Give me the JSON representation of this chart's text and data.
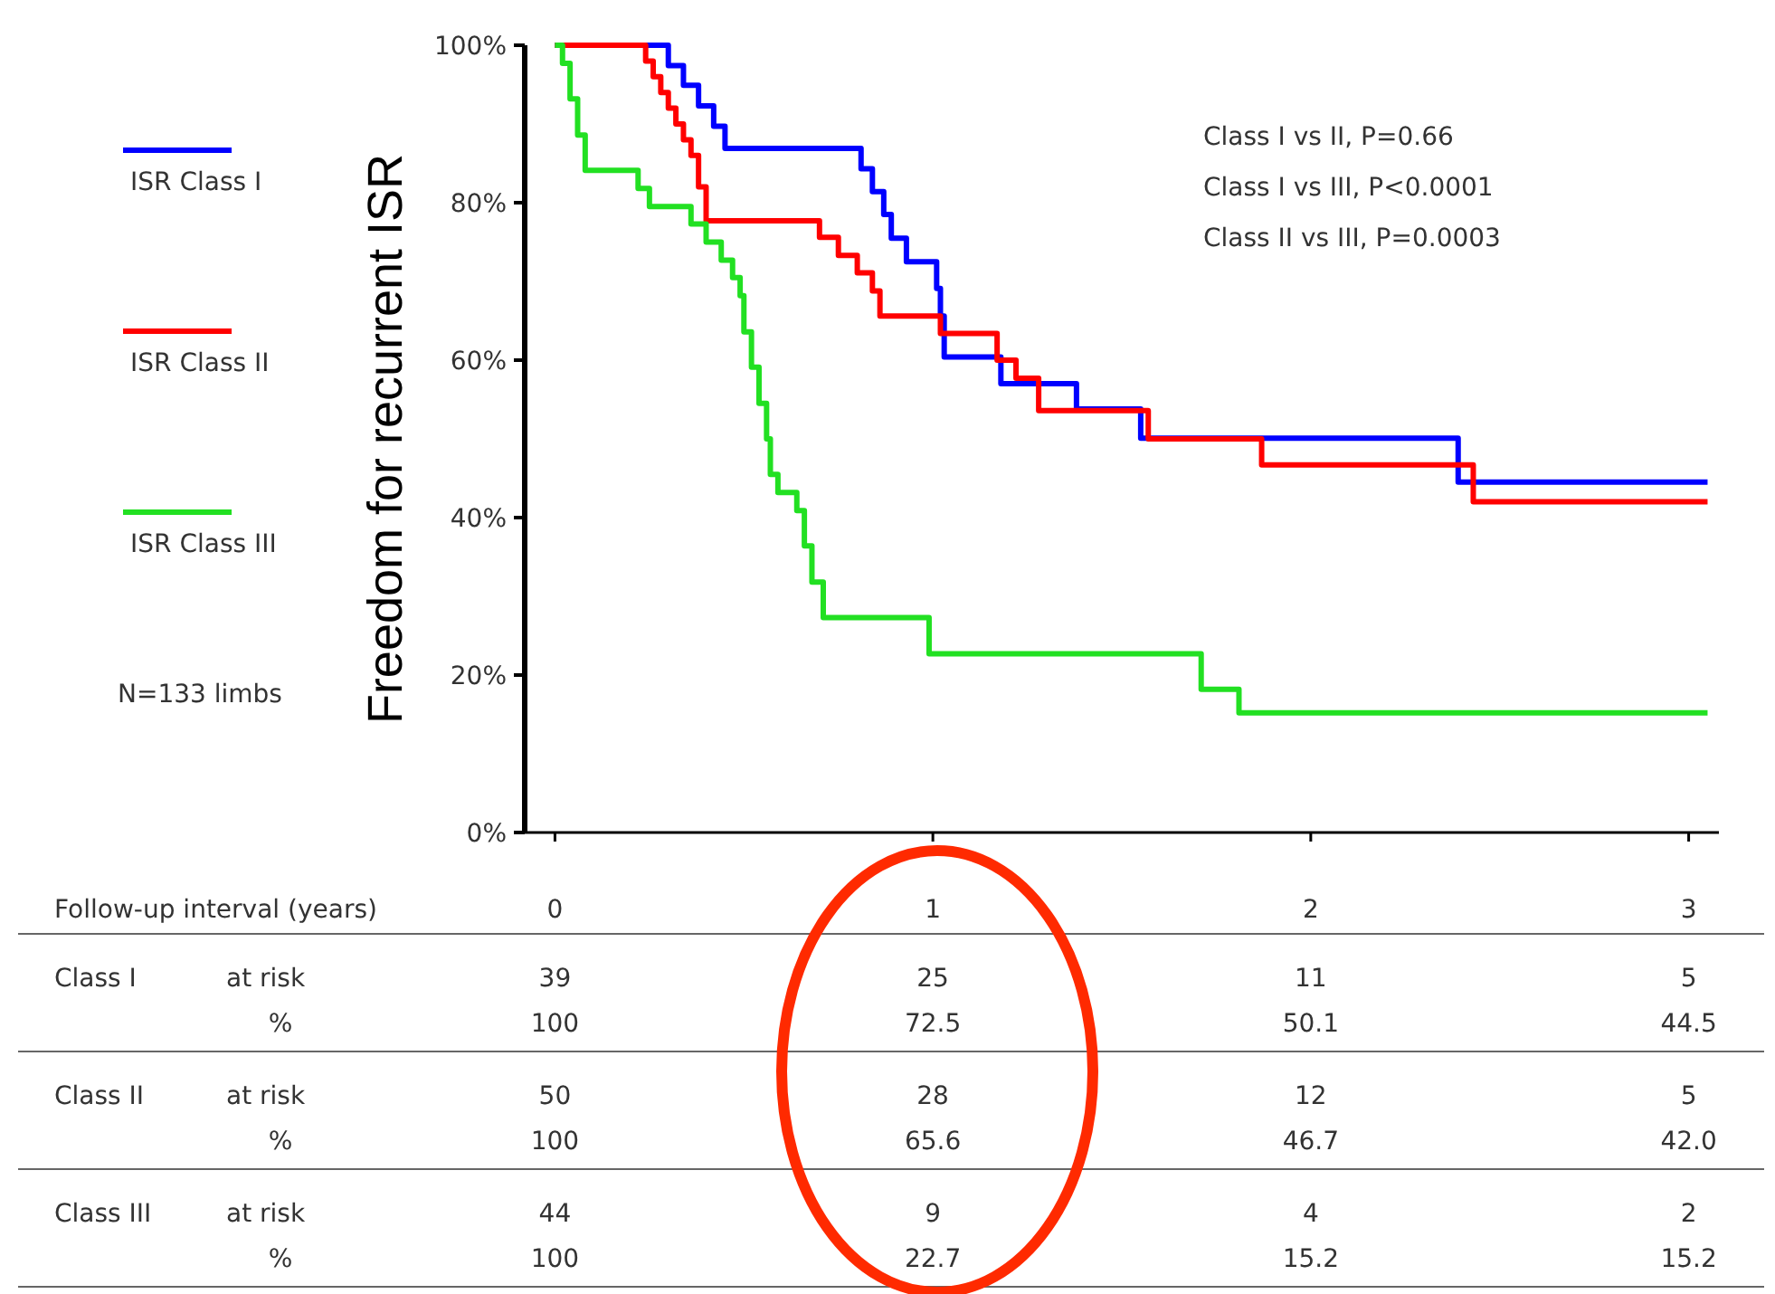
{
  "chart_data": {
    "type": "step",
    "ylabel": "Freedom for recurrent ISR",
    "xlabel": "Follow-up interval (years)",
    "legend": "left",
    "xlim": [
      -0.08,
      3.08
    ],
    "xticks": [
      0,
      1,
      2,
      3
    ],
    "ylim": [
      0,
      100
    ],
    "yticks": [
      {
        "value": 0,
        "label": "0%"
      },
      {
        "value": 20,
        "label": "20%"
      },
      {
        "value": 40,
        "label": "40%"
      },
      {
        "value": 60,
        "label": "60%"
      },
      {
        "value": 80,
        "label": "80%"
      },
      {
        "value": 100,
        "label": "100%"
      }
    ],
    "series": [
      {
        "name": "ISR Class I",
        "color": "#0000ff",
        "x": [
          0,
          0.3,
          0.34,
          0.38,
          0.42,
          0.45,
          0.81,
          0.84,
          0.87,
          0.89,
          0.93,
          1.01,
          1.02,
          1.03,
          1.18,
          1.38,
          1.55,
          2.39,
          3.05
        ],
        "values": [
          100,
          97.4,
          94.9,
          92.3,
          89.7,
          86.9,
          84.3,
          81.4,
          78.5,
          75.5,
          72.5,
          69.1,
          65.6,
          60.4,
          57,
          53.8,
          50.1,
          44.5,
          44.5
        ]
      },
      {
        "name": "ISR Class II",
        "color": "#ff0000",
        "x": [
          0,
          0.24,
          0.26,
          0.28,
          0.3,
          0.32,
          0.34,
          0.36,
          0.38,
          0.4,
          0.7,
          0.75,
          0.8,
          0.84,
          0.86,
          1.02,
          1.17,
          1.22,
          1.28,
          1.57,
          1.87,
          2.43,
          3.05
        ],
        "values": [
          100,
          98,
          96,
          94,
          92,
          90,
          88,
          86,
          82,
          77.7,
          75.6,
          73.3,
          71.1,
          68.8,
          65.6,
          63.4,
          60,
          57.7,
          53.6,
          50,
          46.7,
          42,
          42
        ]
      },
      {
        "name": "ISR Class III",
        "color": "#22e022",
        "x": [
          0,
          0.02,
          0.04,
          0.06,
          0.08,
          0.22,
          0.25,
          0.36,
          0.4,
          0.44,
          0.47,
          0.49,
          0.5,
          0.52,
          0.54,
          0.56,
          0.57,
          0.59,
          0.64,
          0.66,
          0.68,
          0.71,
          0.99,
          1.71,
          1.81,
          3.05
        ],
        "values": [
          100,
          97.7,
          93.2,
          88.6,
          84.1,
          81.8,
          79.5,
          77.3,
          75,
          72.7,
          70.5,
          68.2,
          63.6,
          59.1,
          54.5,
          50,
          45.5,
          43.2,
          40.9,
          36.4,
          31.8,
          27.3,
          22.7,
          18.2,
          15.2,
          15.2
        ]
      }
    ],
    "annotations": [
      "Class I vs II, P=0.66",
      "Class I vs III, P<0.0001",
      "Class II vs III, P=0.0003",
      "N=133 limbs",
      "Class I",
      "at risk",
      "39",
      "25",
      "11",
      "5",
      "%",
      "100",
      "72.5",
      "50.1",
      "44.5",
      "Class II",
      "at risk",
      "50",
      "28",
      "12",
      "5",
      "%",
      "100",
      "65.6",
      "46.7",
      "42.0",
      "Class III",
      "at risk",
      "44",
      "9",
      "4",
      "2",
      "%",
      "100",
      "22.7",
      "15.2",
      "15.2"
    ]
  }
}
